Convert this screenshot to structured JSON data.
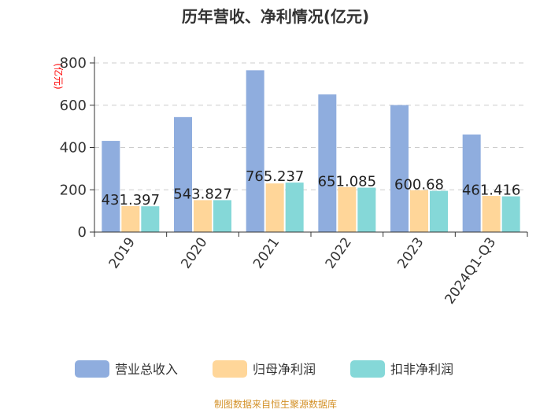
{
  "chart_data": {
    "type": "bar",
    "title": "历年营收、净利情况(亿元)",
    "ylabel": "(亿元)",
    "xlabel": "",
    "categories": [
      "2019",
      "2020",
      "2021",
      "2022",
      "2023",
      "2024Q1-Q3"
    ],
    "ylim": [
      0,
      800
    ],
    "yticks": [
      0,
      200,
      400,
      600,
      800
    ],
    "grid": true,
    "legend_position": "bottom",
    "series": [
      {
        "name": "营业总收入",
        "color": "#8fadde",
        "values": [
          431.397,
          543.827,
          765.237,
          651.085,
          600.68,
          461.416
        ]
      },
      {
        "name": "归母净利润",
        "color": "#ffd699",
        "values": [
          123,
          151,
          230,
          213,
          198,
          171
        ]
      },
      {
        "name": "扣非净利润",
        "color": "#85d8d8",
        "values": [
          122,
          151,
          234,
          210,
          195,
          169
        ]
      }
    ],
    "data_labels": [
      "431.397",
      "543.827",
      "765.237",
      "651.085",
      "600.68",
      "461.416"
    ]
  },
  "source": "制图数据来自恒生聚源数据库"
}
